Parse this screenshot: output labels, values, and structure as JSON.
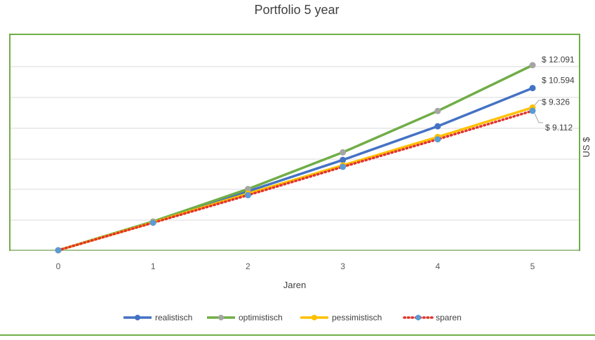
{
  "chart_data": {
    "type": "line",
    "title": "Portfolio 5 year",
    "xlabel": "Jaren",
    "ylabel": "US $",
    "x": [
      0,
      1,
      2,
      3,
      4,
      5
    ],
    "ylim": [
      0,
      12000
    ],
    "grid": true,
    "legend_position": "bottom",
    "series": [
      {
        "name": "realistisch",
        "color": "#4472c4",
        "marker_color": "#4472c4",
        "dotted": false,
        "values": [
          0,
          1850,
          3850,
          5900,
          8100,
          10594
        ],
        "end_label": "$ 10.594"
      },
      {
        "name": "optimistisch",
        "color": "#70ad47",
        "marker_color": "#a5a5a5",
        "dotted": false,
        "values": [
          0,
          1880,
          4000,
          6400,
          9100,
          12091
        ],
        "end_label": "$ 12.091"
      },
      {
        "name": "pessimistisch",
        "color": "#ffc000",
        "marker_color": "#ffc000",
        "dotted": false,
        "values": [
          0,
          1820,
          3700,
          5550,
          7400,
          9326
        ],
        "end_label": "$ 9.326"
      },
      {
        "name": "sparen",
        "color": "#e0342b",
        "marker_color": "#5b9bd5",
        "dotted": true,
        "values": [
          0,
          1800,
          3600,
          5450,
          7250,
          9112
        ],
        "end_label": "$ 9.112"
      }
    ]
  }
}
